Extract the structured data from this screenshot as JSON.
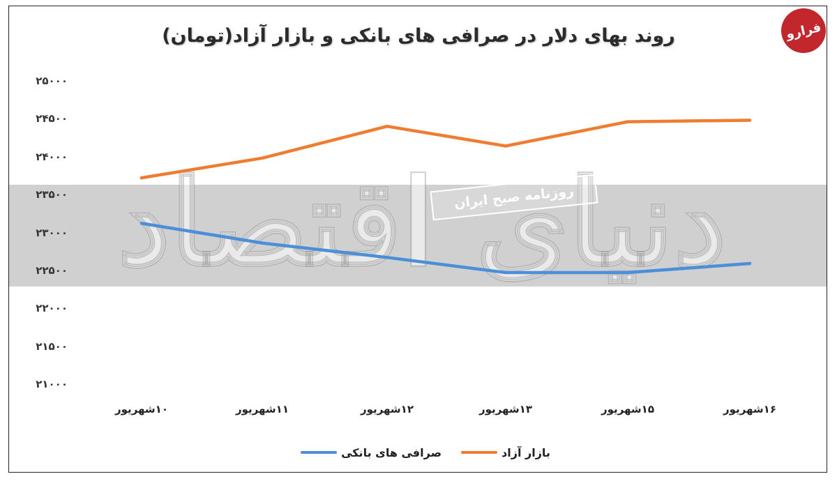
{
  "title": "روند بهای دلار در صرافی های بانکی و بازار آزاد(تومان)",
  "logo_text": "فرارو",
  "watermark": {
    "stamp_text": "روزنامه صبح ایران",
    "big_text": "دنیای اقتصاد"
  },
  "colors": {
    "banking": "#4a8fd8",
    "free_market": "#ee7d31",
    "band": "#d0d0d0"
  },
  "chart_data": {
    "type": "line",
    "title": "روند بهای دلار در صرافی های بانکی و بازار آزاد(تومان)",
    "categories": [
      "۱۰شهریور",
      "۱۱شهریور",
      "۱۲شهریور",
      "۱۳شهریور",
      "۱۵شهریور",
      "۱۶شهریور"
    ],
    "y_tick_labels": [
      "۲۵۰۰۰",
      "۲۴۵۰۰",
      "۲۴۰۰۰",
      "۲۳۵۰۰",
      "۲۳۰۰۰",
      "۲۲۵۰۰",
      "۲۲۰۰۰",
      "۲۱۵۰۰",
      "۲۱۰۰۰"
    ],
    "ylim": [
      21000,
      25000
    ],
    "grid": false,
    "legend_position": "bottom",
    "series": [
      {
        "name": "صرافی های بانکی",
        "color": "#4a8fd8",
        "values": [
          23130,
          22870,
          22680,
          22480,
          22480,
          22600
        ]
      },
      {
        "name": "بازار آزاد",
        "color": "#ee7d31",
        "values": [
          23730,
          23990,
          24410,
          24150,
          24470,
          24490
        ]
      }
    ]
  }
}
